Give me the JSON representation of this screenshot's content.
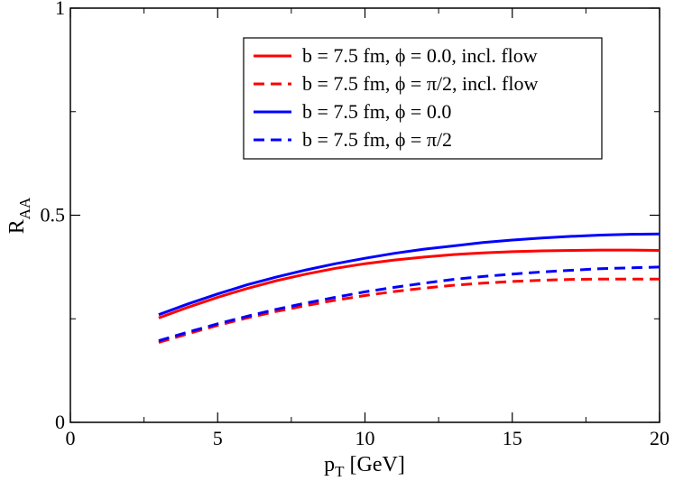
{
  "chart_data": {
    "type": "line",
    "title": "",
    "xlabel": "p",
    "xlabel_sub": "T",
    "xlabel_suffix": " [GeV]",
    "ylabel": "R",
    "ylabel_sub": "AA",
    "xlim": [
      0,
      20
    ],
    "ylim": [
      0,
      1
    ],
    "xticks": [
      0,
      5,
      10,
      15,
      20
    ],
    "yticks": [
      0,
      0.5,
      1
    ],
    "xtick_labels": [
      "0",
      "5",
      "10",
      "15",
      "20"
    ],
    "ytick_labels": [
      "0",
      "0.5",
      "1"
    ],
    "grid": false,
    "legend_position": "top-right",
    "x": [
      3,
      4,
      5,
      6,
      7,
      8,
      9,
      10,
      11,
      12,
      13,
      14,
      15,
      16,
      17,
      18,
      19,
      20
    ],
    "series": [
      {
        "name": "b = 7.5 fm, ϕ = 0.0, incl. flow",
        "color": "#ff0000",
        "dash": "solid",
        "values": [
          0.252,
          0.278,
          0.302,
          0.323,
          0.342,
          0.358,
          0.372,
          0.383,
          0.392,
          0.399,
          0.405,
          0.409,
          0.412,
          0.414,
          0.415,
          0.416,
          0.416,
          0.415
        ]
      },
      {
        "name": "b = 7.5 fm, ϕ = π/2, incl. flow",
        "color": "#ff0000",
        "dash": "dashed",
        "values": [
          0.193,
          0.214,
          0.234,
          0.252,
          0.268,
          0.282,
          0.295,
          0.306,
          0.316,
          0.324,
          0.331,
          0.336,
          0.34,
          0.343,
          0.345,
          0.346,
          0.346,
          0.346
        ]
      },
      {
        "name": "b = 7.5 fm, ϕ = 0.0",
        "color": "#0000ff",
        "dash": "solid",
        "values": [
          0.26,
          0.286,
          0.31,
          0.332,
          0.351,
          0.368,
          0.383,
          0.396,
          0.408,
          0.418,
          0.426,
          0.434,
          0.44,
          0.445,
          0.449,
          0.452,
          0.454,
          0.455
        ]
      },
      {
        "name": "b = 7.5 fm, ϕ = π/2",
        "color": "#0000ff",
        "dash": "dashed",
        "values": [
          0.197,
          0.218,
          0.238,
          0.256,
          0.273,
          0.288,
          0.302,
          0.315,
          0.326,
          0.336,
          0.345,
          0.352,
          0.358,
          0.363,
          0.367,
          0.371,
          0.373,
          0.375
        ]
      }
    ]
  }
}
